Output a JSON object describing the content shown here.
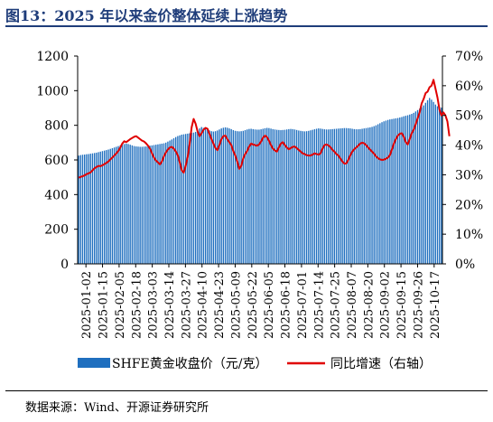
{
  "header": {
    "title": "图13：2025 年以来金价整体延续上涨趋势"
  },
  "footer": {
    "source": "数据来源：Wind、开源证券研究所"
  },
  "colors": {
    "bar": "#1f6fbf",
    "line": "#e00000",
    "axis": "#000000"
  },
  "chart_data": {
    "type": "bar+line",
    "title": "图13：2025 年以来金价整体延续上涨趋势",
    "y_left": {
      "ticks": [
        "0",
        "200",
        "400",
        "600",
        "800",
        "1000",
        "1200"
      ],
      "range": [
        0,
        1200
      ]
    },
    "y_right": {
      "ticks": [
        "0%",
        "10%",
        "20%",
        "30%",
        "40%",
        "50%",
        "60%",
        "70%"
      ],
      "range": [
        0,
        0.7
      ]
    },
    "x_tick_labels": [
      "2025-01-02",
      "2025-01-15",
      "2025-02-05",
      "2025-02-18",
      "2025-03-03",
      "2025-03-14",
      "2025-03-27",
      "2025-04-10",
      "2025-04-23",
      "2025-05-09",
      "2025-05-22",
      "2025-06-05",
      "2025-06-18",
      "2025-07-01",
      "2025-07-14",
      "2025-07-25",
      "2025-08-07",
      "2025-08-20",
      "2025-09-02",
      "2025-09-15",
      "2025-09-26",
      "2025-10-17"
    ],
    "legend": [
      "SHFE黄金收盘价（元/克）",
      "同比增速（右轴）"
    ],
    "legend_position": "bottom",
    "series": [
      {
        "name": "SHFE黄金收盘价（元/克）",
        "type": "bar",
        "axis": "left",
        "values": [
          625,
          628,
          630,
          631,
          633,
          634,
          636,
          638,
          640,
          642,
          645,
          648,
          651,
          654,
          657,
          660,
          664,
          668,
          672,
          676,
          680,
          684,
          688,
          692,
          694,
          692,
          688,
          684,
          680,
          678,
          677,
          676,
          676,
          677,
          678,
          680,
          682,
          684,
          686,
          688,
          690,
          692,
          694,
          696,
          700,
          706,
          712,
          718,
          725,
          732,
          738,
          742,
          746,
          748,
          750,
          752,
          754,
          756,
          758,
          762,
          770,
          782,
          790,
          785,
          780,
          775,
          770,
          766,
          764,
          766,
          770,
          776,
          782,
          786,
          788,
          786,
          782,
          778,
          772,
          768,
          766,
          765,
          766,
          768,
          772,
          776,
          779,
          780,
          778,
          776,
          775,
          775,
          777,
          780,
          783,
          785,
          784,
          781,
          778,
          776,
          774,
          773,
          772,
          773,
          774,
          776,
          778,
          779,
          778,
          776,
          773,
          770,
          768,
          766,
          765,
          766,
          768,
          771,
          774,
          777,
          780,
          782,
          781,
          779,
          777,
          776,
          776,
          777,
          778,
          779,
          780,
          781,
          782,
          783,
          784,
          784,
          783,
          782,
          780,
          778,
          777,
          777,
          778,
          780,
          782,
          784,
          786,
          788,
          791,
          795,
          800,
          806,
          812,
          818,
          823,
          827,
          831,
          834,
          836,
          838,
          840,
          842,
          845,
          848,
          852,
          855,
          858,
          862,
          866,
          872,
          880,
          888,
          896,
          905,
          915,
          930,
          945,
          958,
          948,
          935,
          920,
          910,
          905,
          902
        ]
      },
      {
        "name": "同比增速（右轴）",
        "type": "line",
        "axis": "right",
        "values": [
          0.29,
          0.293,
          0.295,
          0.298,
          0.302,
          0.305,
          0.308,
          0.315,
          0.322,
          0.326,
          0.33,
          0.329,
          0.332,
          0.336,
          0.34,
          0.345,
          0.352,
          0.358,
          0.365,
          0.372,
          0.38,
          0.392,
          0.405,
          0.413,
          0.41,
          0.415,
          0.42,
          0.424,
          0.428,
          0.43,
          0.425,
          0.42,
          0.415,
          0.412,
          0.406,
          0.398,
          0.388,
          0.372,
          0.358,
          0.348,
          0.342,
          0.335,
          0.345,
          0.362,
          0.375,
          0.385,
          0.392,
          0.394,
          0.388,
          0.379,
          0.366,
          0.342,
          0.315,
          0.307,
          0.33,
          0.36,
          0.405,
          0.46,
          0.488,
          0.472,
          0.446,
          0.43,
          0.44,
          0.452,
          0.458,
          0.455,
          0.438,
          0.42,
          0.405,
          0.39,
          0.383,
          0.4,
          0.42,
          0.43,
          0.432,
          0.42,
          0.41,
          0.4,
          0.38,
          0.365,
          0.345,
          0.32,
          0.33,
          0.355,
          0.37,
          0.38,
          0.395,
          0.405,
          0.402,
          0.4,
          0.398,
          0.402,
          0.412,
          0.425,
          0.432,
          0.427,
          0.415,
          0.4,
          0.388,
          0.382,
          0.378,
          0.392,
          0.405,
          0.41,
          0.4,
          0.392,
          0.386,
          0.39,
          0.394,
          0.395,
          0.39,
          0.384,
          0.378,
          0.372,
          0.37,
          0.366,
          0.365,
          0.365,
          0.368,
          0.372,
          0.37,
          0.368,
          0.372,
          0.388,
          0.4,
          0.402,
          0.399,
          0.393,
          0.384,
          0.378,
          0.37,
          0.365,
          0.355,
          0.345,
          0.338,
          0.338,
          0.35,
          0.365,
          0.378,
          0.386,
          0.392,
          0.398,
          0.405,
          0.408,
          0.406,
          0.4,
          0.392,
          0.385,
          0.378,
          0.371,
          0.362,
          0.356,
          0.352,
          0.35,
          0.351,
          0.354,
          0.358,
          0.366,
          0.385,
          0.405,
          0.42,
          0.432,
          0.438,
          0.44,
          0.428,
          0.41,
          0.402,
          0.42,
          0.44,
          0.452,
          0.47,
          0.49,
          0.51,
          0.54,
          0.555,
          0.575,
          0.58,
          0.595,
          0.6,
          0.62,
          0.59,
          0.56,
          0.52,
          0.5,
          0.51,
          0.5,
          0.48,
          0.43
        ]
      }
    ]
  }
}
